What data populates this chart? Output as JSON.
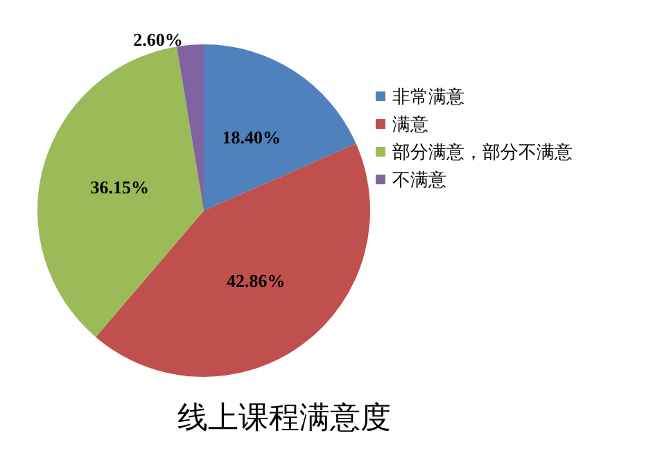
{
  "chart_data": {
    "type": "pie",
    "title": "线上课程满意度",
    "categories": [
      "非常满意",
      "满意",
      "部分满意，部分不满意",
      "不满意"
    ],
    "values": [
      18.4,
      42.86,
      36.15,
      2.6
    ],
    "colors": [
      "#4f81bd",
      "#c0504d",
      "#9bbb59",
      "#8064a2"
    ],
    "value_labels": [
      "18.40%",
      "42.86%",
      "36.15%",
      "2.60%"
    ],
    "legend": "right"
  }
}
